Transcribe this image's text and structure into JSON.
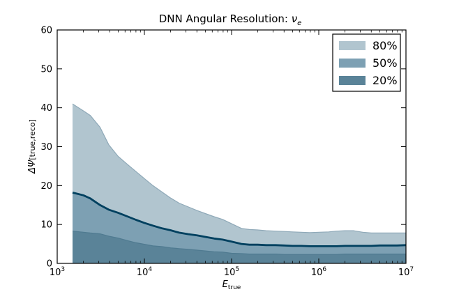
{
  "chart_data": {
    "type": "area",
    "title": "DNN Angular Resolution: ",
    "title_symbol": "ν",
    "title_subscript": "e",
    "xlabel": "E",
    "xlabel_subscript": "true",
    "ylabel": "ΔΨ",
    "ylabel_subscript": "[true,reco]",
    "x_scale": "log",
    "xlim": [
      1000,
      10000000
    ],
    "ylim": [
      0,
      60
    ],
    "x_ticks": [
      1000,
      10000,
      100000,
      1000000,
      10000000
    ],
    "x_tick_bases": [
      "10",
      "10",
      "10",
      "10",
      "10"
    ],
    "x_tick_exponents": [
      "3",
      "4",
      "5",
      "6",
      "7"
    ],
    "y_ticks": [
      0,
      10,
      20,
      30,
      40,
      50,
      60
    ],
    "y_tick_labels": [
      "0",
      "10",
      "20",
      "30",
      "40",
      "50",
      "60"
    ],
    "legend_position": "top-right",
    "x": [
      1500,
      2000,
      2400,
      3100,
      3900,
      5000,
      6500,
      8000,
      10000,
      12500,
      16000,
      20000,
      25000,
      32000,
      40000,
      50000,
      63000,
      79000,
      100000,
      130000,
      160000,
      200000,
      250000,
      320000,
      400000,
      500000,
      630000,
      790000,
      1000000,
      1300000,
      1600000,
      2000000,
      2500000,
      3200000,
      4000000,
      5000000,
      6300000,
      7900000,
      10000000
    ],
    "series": [
      {
        "name": "80%",
        "color": "#b1c5cf",
        "edge_color": "#8fa9b8",
        "values": [
          41,
          39.2,
          38,
          35,
          30.5,
          27.5,
          25.3,
          23.6,
          21.8,
          20,
          18.3,
          16.8,
          15.5,
          14.5,
          13.6,
          12.8,
          12,
          11.3,
          10.2,
          9,
          8.7,
          8.6,
          8.4,
          8.3,
          8.2,
          8.1,
          8.0,
          7.9,
          8.0,
          8.1,
          8.3,
          8.4,
          8.4,
          8.0,
          7.8,
          7.8,
          7.8,
          7.8,
          7.8
        ]
      },
      {
        "name": "50%",
        "color": "#7da0b3",
        "edge_color": "#00405f",
        "values": [
          18.2,
          17.5,
          16.7,
          15,
          13.8,
          13,
          12,
          11.2,
          10.4,
          9.7,
          9,
          8.5,
          7.9,
          7.5,
          7.2,
          6.8,
          6.4,
          6.1,
          5.6,
          5,
          4.8,
          4.8,
          4.7,
          4.7,
          4.6,
          4.5,
          4.5,
          4.4,
          4.4,
          4.4,
          4.4,
          4.5,
          4.5,
          4.5,
          4.5,
          4.6,
          4.6,
          4.6,
          4.7
        ]
      },
      {
        "name": "20%",
        "color": "#5a8398",
        "edge_color": "#4f7a90",
        "values": [
          8.3,
          8.0,
          7.8,
          7.6,
          7.0,
          6.5,
          5.8,
          5.3,
          4.9,
          4.5,
          4.3,
          4.0,
          3.8,
          3.6,
          3.4,
          3.2,
          3.0,
          2.9,
          2.6,
          2.5,
          2.4,
          2.4,
          2.4,
          2.4,
          2.3,
          2.3,
          2.3,
          2.3,
          2.3,
          2.3,
          2.3,
          2.4,
          2.4,
          2.4,
          2.4,
          2.4,
          2.4,
          2.4,
          2.4
        ]
      }
    ]
  }
}
